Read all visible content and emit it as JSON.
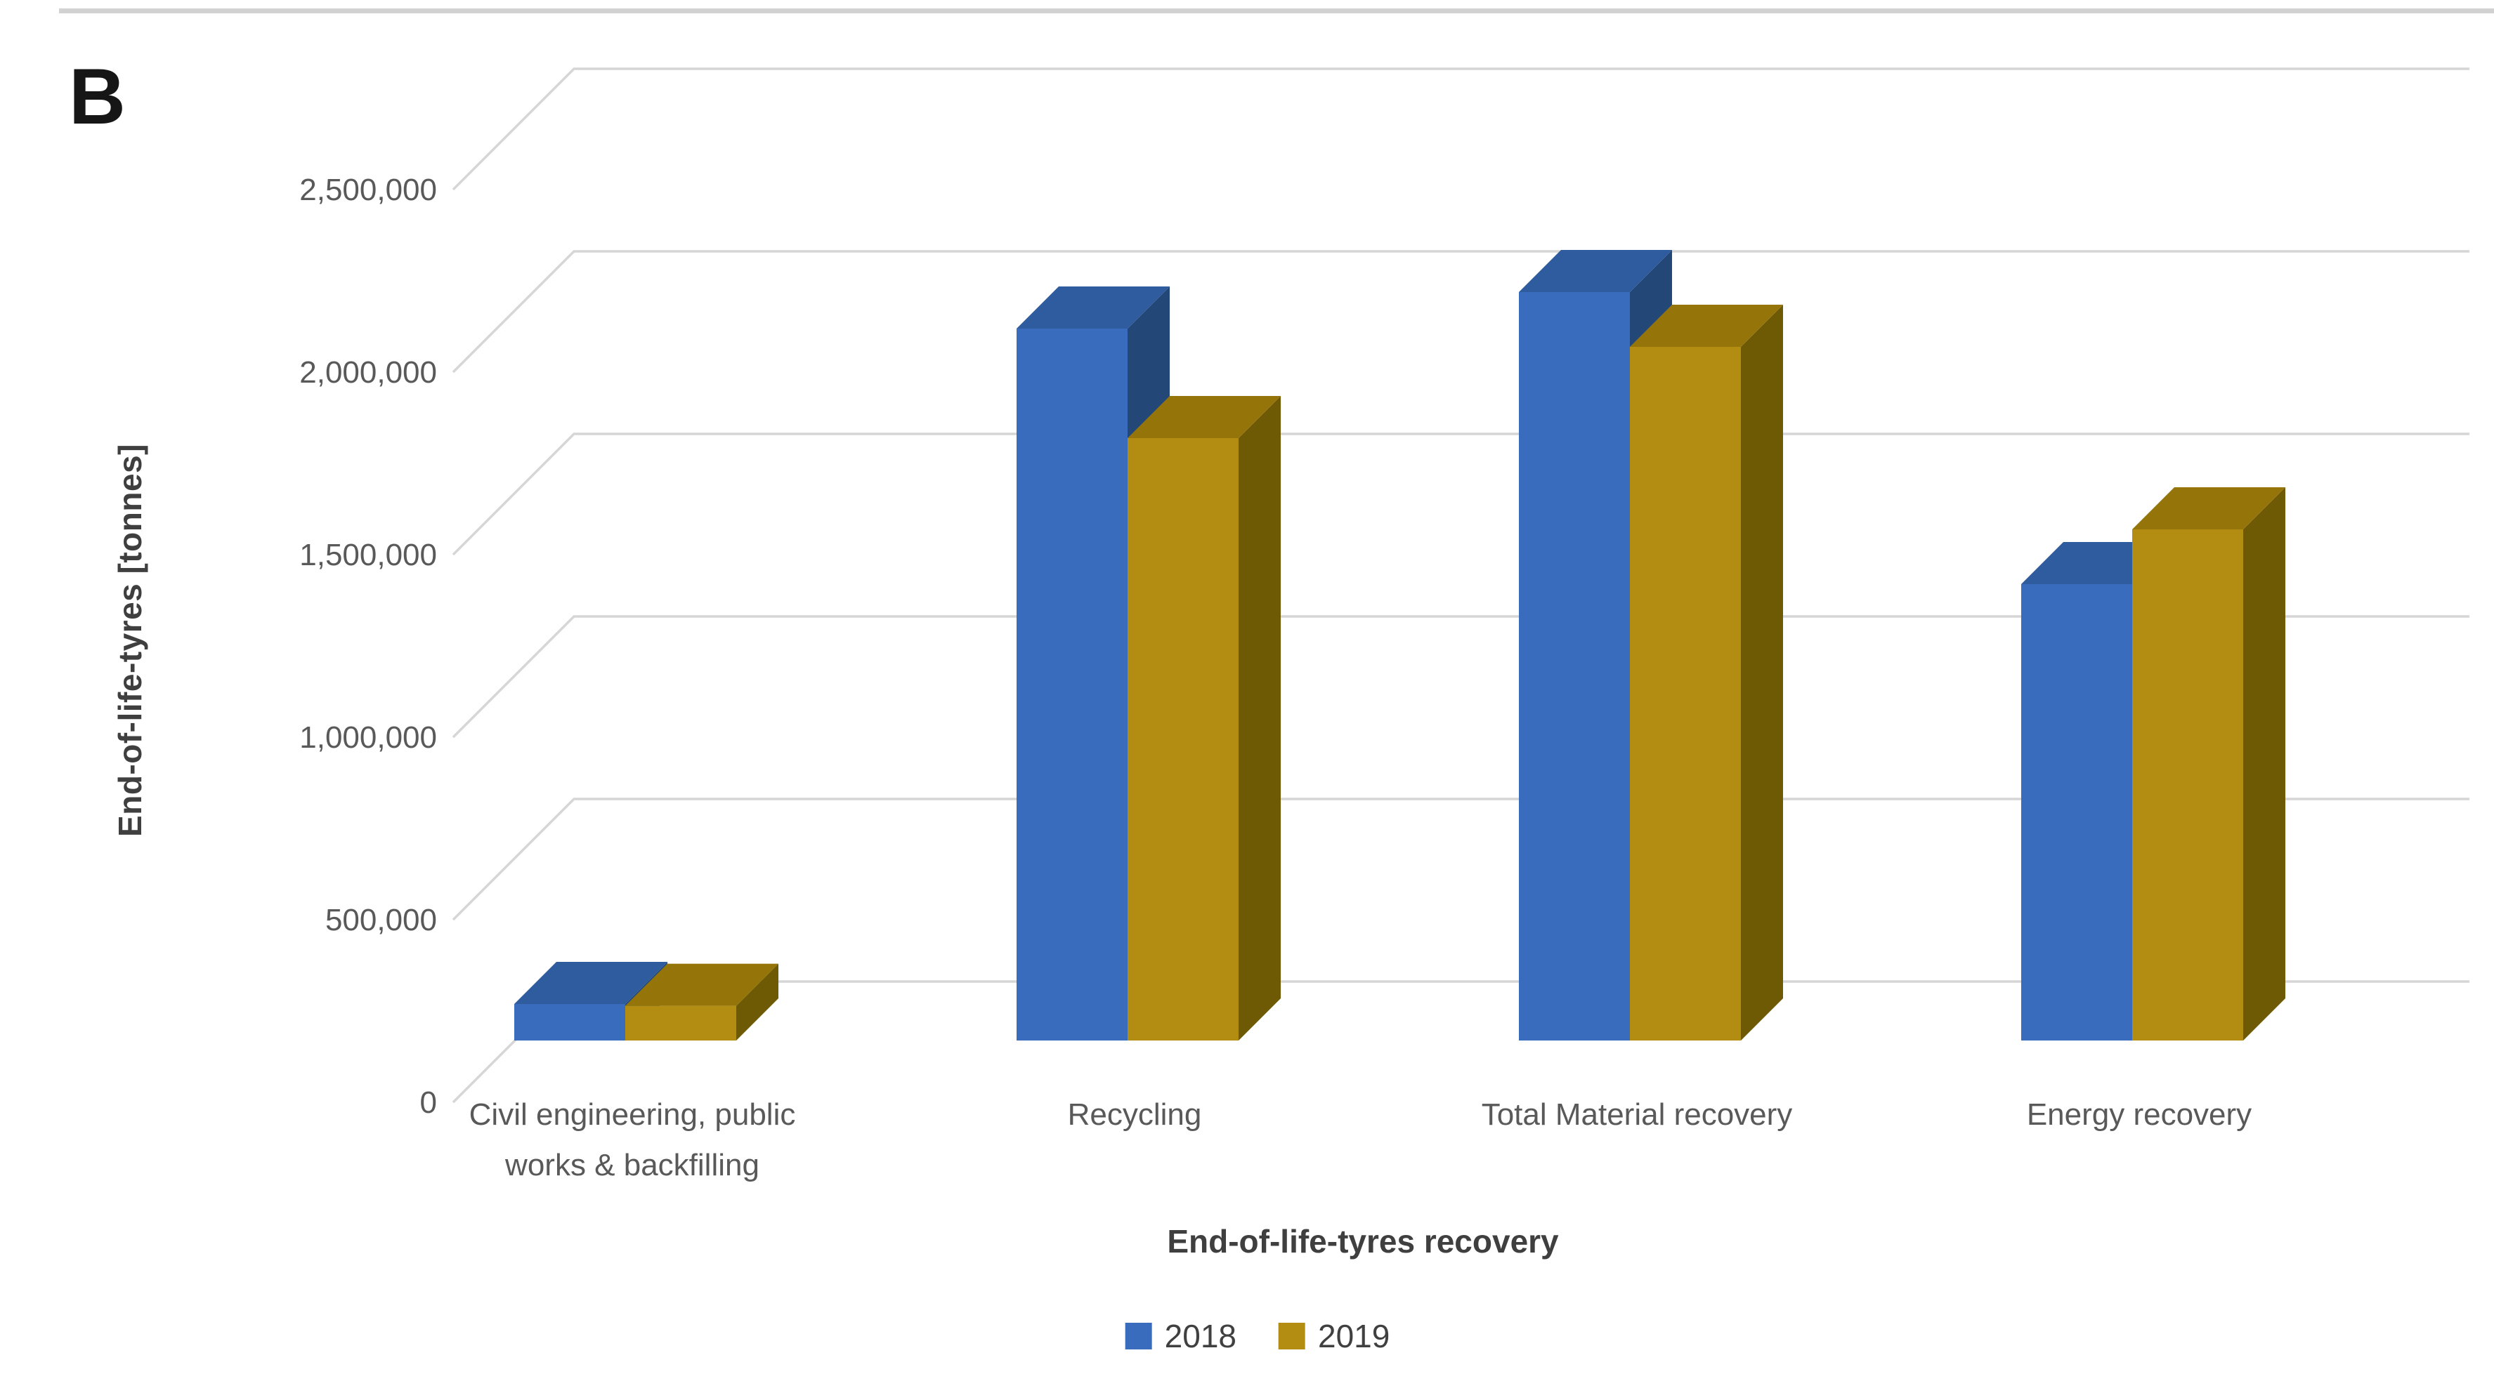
{
  "figure": {
    "panel_label": "B"
  },
  "chart_data": {
    "type": "bar",
    "variant": "3d-clustered-column",
    "title": "",
    "xlabel": "End-of-life-tyres recovery",
    "ylabel": "End-of-life-tyres [tonnes]",
    "categories": [
      {
        "label": "Civil engineering, public works & backfilling",
        "lines": [
          "Civil engineering, public",
          "works & backfilling"
        ]
      },
      {
        "label": "Recycling",
        "lines": [
          "Recycling"
        ]
      },
      {
        "label": "Total Material recovery",
        "lines": [
          "Total Material recovery"
        ]
      },
      {
        "label": "Energy recovery",
        "lines": [
          "Energy recovery"
        ]
      }
    ],
    "series": [
      {
        "name": "2018",
        "values": [
          100000,
          1950000,
          2050000,
          1250000
        ],
        "color_front": "#3a6cbe",
        "color_top": "#2e5c9e",
        "color_side": "#234878"
      },
      {
        "name": "2019",
        "values": [
          95000,
          1650000,
          1900000,
          1400000
        ],
        "color_front": "#b28d11",
        "color_top": "#95750a",
        "color_side": "#6e5904"
      }
    ],
    "ylim": [
      0,
      2500000
    ],
    "ytick_step": 500000,
    "ytick_labels": [
      "0",
      "500,000",
      "1,000,000",
      "1,500,000",
      "2,000,000",
      "2,500,000"
    ],
    "grid": true,
    "gridline_color": "#d6d6d6",
    "legend_position": "bottom"
  }
}
